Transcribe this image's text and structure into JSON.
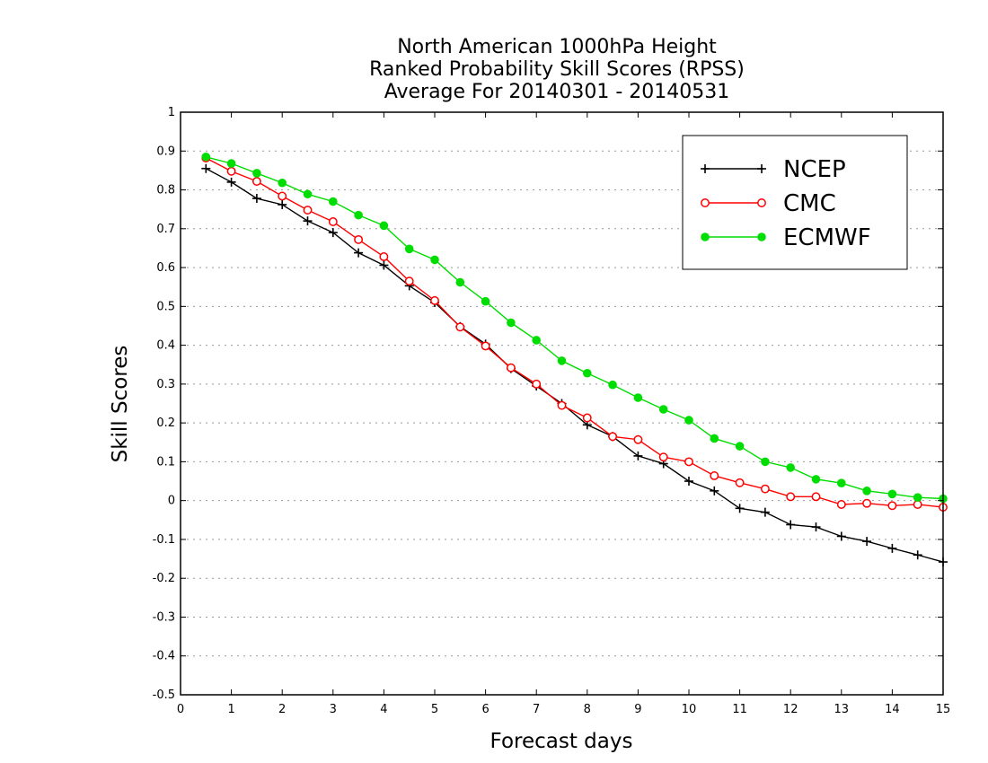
{
  "chart_data": {
    "type": "line",
    "title_lines": [
      "North American 1000hPa Height",
      "Ranked Probability Skill Scores (RPSS)",
      "Average For 20140301 - 20140531"
    ],
    "xlabel": "Forecast days",
    "ylabel": "Skill Scores",
    "xlim": [
      0,
      15
    ],
    "ylim": [
      -0.5,
      1
    ],
    "xticks": [
      "0",
      "1",
      "2",
      "3",
      "4",
      "5",
      "6",
      "7",
      "8",
      "9",
      "10",
      "11",
      "12",
      "13",
      "14",
      "15"
    ],
    "yticks": [
      "-0.5",
      "-0.4",
      "-0.3",
      "-0.2",
      "-0.1",
      "0",
      "0.1",
      "0.2",
      "0.3",
      "0.4",
      "0.5",
      "0.6",
      "0.7",
      "0.8",
      "0.9",
      "1"
    ],
    "grid": "horizontal dotted",
    "legend_position": "top-right",
    "x": [
      0.5,
      1,
      1.5,
      2,
      2.5,
      3,
      3.5,
      4,
      4.5,
      5,
      5.5,
      6,
      6.5,
      7,
      7.5,
      8,
      8.5,
      9,
      9.5,
      10,
      10.5,
      11,
      11.5,
      12,
      12.5,
      13,
      13.5,
      14,
      14.5,
      15
    ],
    "series": [
      {
        "name": "NCEP",
        "color": "#000000",
        "marker": "plus",
        "values": [
          0.855,
          0.82,
          0.778,
          0.762,
          0.72,
          0.69,
          0.638,
          0.606,
          0.553,
          0.51,
          0.448,
          0.403,
          0.34,
          0.295,
          0.25,
          0.195,
          0.165,
          0.115,
          0.095,
          0.05,
          0.025,
          -0.02,
          -0.03,
          -0.062,
          -0.068,
          -0.092,
          -0.105,
          -0.123,
          -0.14,
          -0.158
        ]
      },
      {
        "name": "CMC",
        "color": "#ff0000",
        "marker": "open-circle",
        "values": [
          0.882,
          0.848,
          0.822,
          0.784,
          0.748,
          0.718,
          0.672,
          0.628,
          0.565,
          0.515,
          0.447,
          0.398,
          0.342,
          0.3,
          0.245,
          0.213,
          0.165,
          0.157,
          0.112,
          0.1,
          0.064,
          0.046,
          0.03,
          0.01,
          0.01,
          -0.01,
          -0.007,
          -0.013,
          -0.01,
          -0.017
        ]
      },
      {
        "name": "ECMWF",
        "color": "#00dd00",
        "marker": "filled-circle",
        "values": [
          0.885,
          0.868,
          0.843,
          0.818,
          0.789,
          0.77,
          0.735,
          0.708,
          0.648,
          0.62,
          0.562,
          0.513,
          0.458,
          0.413,
          0.36,
          0.328,
          0.298,
          0.265,
          0.235,
          0.207,
          0.16,
          0.14,
          0.1,
          0.085,
          0.055,
          0.045,
          0.025,
          0.017,
          0.008,
          0.005
        ]
      }
    ]
  }
}
